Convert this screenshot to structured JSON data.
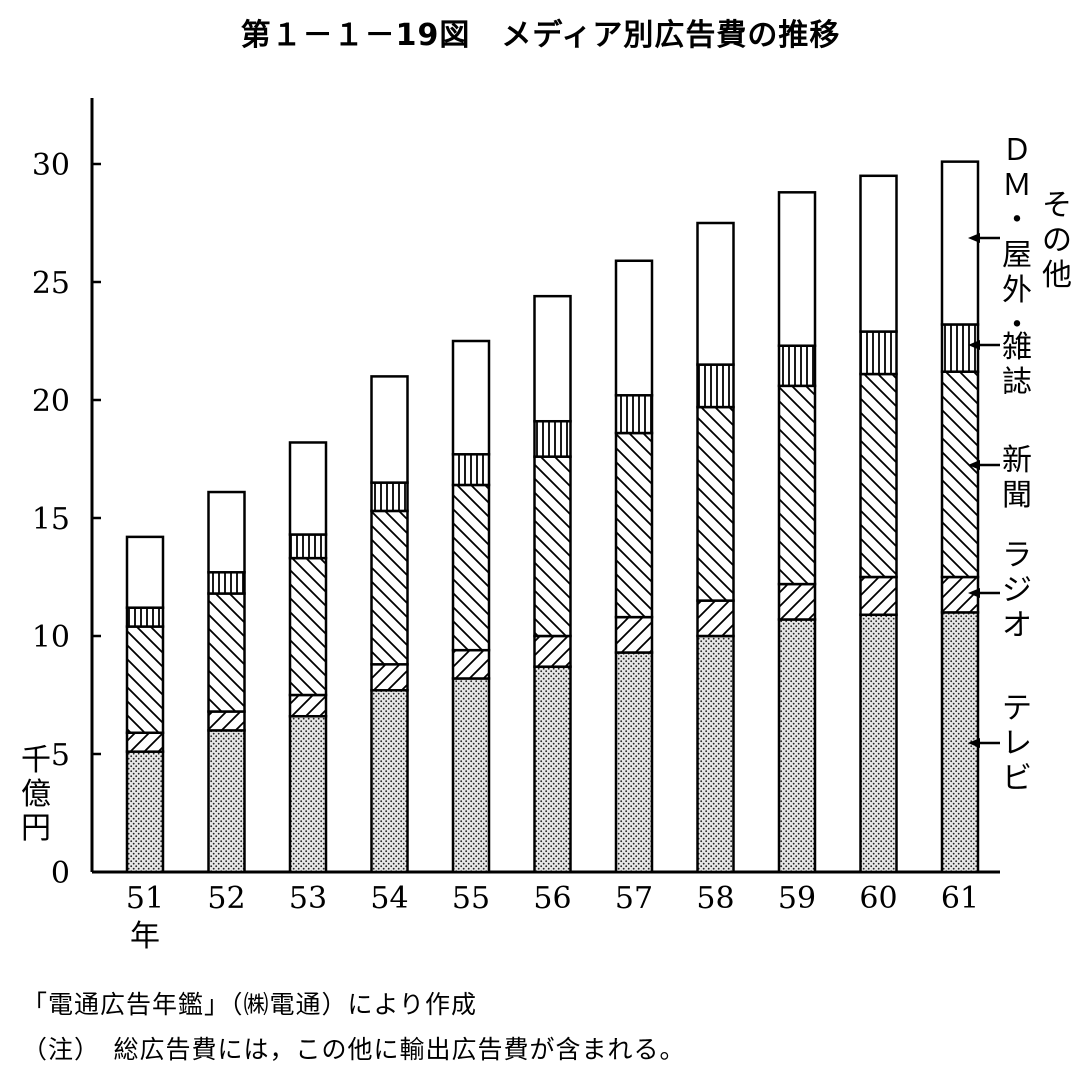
{
  "title": "第１－１－19図　メディア別広告費の推移",
  "chart_data": {
    "type": "bar",
    "stacked": true,
    "title": "第１－１－19図　メディア別広告費の推移",
    "ylabel": "千億円",
    "xlabel": "",
    "year_unit": "年",
    "ylim": [
      0,
      32
    ],
    "yticks": [
      "0",
      "5",
      "10",
      "15",
      "20",
      "25",
      "30"
    ],
    "categories": [
      "51",
      "52",
      "53",
      "54",
      "55",
      "56",
      "57",
      "58",
      "59",
      "60",
      "61"
    ],
    "series": [
      {
        "name": "テレビ",
        "pattern": "dots",
        "values": [
          5.1,
          6.0,
          6.6,
          7.7,
          8.2,
          8.7,
          9.3,
          10.0,
          10.7,
          10.9,
          11.0
        ]
      },
      {
        "name": "ラジオ",
        "pattern": "diag-up",
        "values": [
          0.8,
          0.8,
          0.9,
          1.1,
          1.2,
          1.3,
          1.5,
          1.5,
          1.5,
          1.6,
          1.5
        ]
      },
      {
        "name": "新聞",
        "pattern": "diag-down",
        "values": [
          4.5,
          5.0,
          5.8,
          6.5,
          7.0,
          7.6,
          7.8,
          8.2,
          8.4,
          8.6,
          8.7
        ]
      },
      {
        "name": "雑誌",
        "pattern": "vertical",
        "values": [
          0.8,
          0.9,
          1.0,
          1.2,
          1.3,
          1.5,
          1.6,
          1.8,
          1.7,
          1.8,
          2.0
        ]
      },
      {
        "name": "ＤＭ・屋外・その他",
        "pattern": "blank",
        "values": [
          3.0,
          3.4,
          3.9,
          4.5,
          4.8,
          5.3,
          5.7,
          6.0,
          6.5,
          6.6,
          6.9
        ]
      }
    ],
    "legend": {
      "placement": "right",
      "labels": [
        {
          "series": "ＤＭ・屋外・その他",
          "lines": [
            "その他",
            "ＤＭ・屋外・"
          ]
        },
        {
          "series": "雑誌",
          "lines": [
            "雑誌"
          ]
        },
        {
          "series": "新聞",
          "lines": [
            "新聞"
          ]
        },
        {
          "series": "ラジオ",
          "lines": [
            "ラジオ"
          ]
        },
        {
          "series": "テレビ",
          "lines": [
            "テレビ"
          ]
        }
      ]
    }
  },
  "footer": {
    "source": "「電通広告年鑑」（㈱電通）により作成",
    "note": "（注）　総広告費には，この他に輸出広告費が含まれる。"
  }
}
